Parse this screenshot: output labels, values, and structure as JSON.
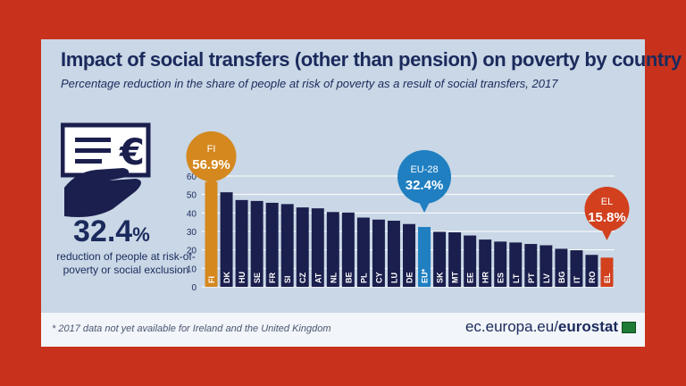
{
  "header": {
    "title": "Impact of social transfers (other than pension) on poverty by country",
    "subtitle": "Percentage reduction in the share of people at risk of poverty as a result of social transfers, 2017"
  },
  "highlight": {
    "value": "32.4",
    "unit": "%",
    "description": "reduction of people at risk-of-poverty or social exclusion"
  },
  "footer": {
    "footnote": "* 2017 data not yet available  for Ireland and the United Kingdom",
    "source_prefix": "ec.europa.eu/",
    "source_brand": "eurostat"
  },
  "callouts": [
    {
      "label": "FI",
      "value": "56.9%",
      "color": "#d4881e",
      "target": "FI"
    },
    {
      "label": "EU-28",
      "value": "32.4%",
      "color": "#1f7fc1",
      "target": "EU"
    },
    {
      "label": "EL",
      "value": "15.8%",
      "color": "#d2401e",
      "target": "EL"
    }
  ],
  "chart_data": {
    "type": "bar",
    "categories": [
      "FI",
      "DK",
      "HU",
      "SE",
      "FR",
      "SI",
      "CZ",
      "AT",
      "NL",
      "BE",
      "PL",
      "CY",
      "LU",
      "DE",
      "EU*",
      "SK",
      "MT",
      "EE",
      "HR",
      "ES",
      "LT",
      "PT",
      "LV",
      "BG",
      "IT",
      "RO",
      "EL"
    ],
    "values": [
      56.9,
      51.2,
      47.0,
      46.5,
      45.5,
      44.8,
      43.0,
      42.5,
      40.5,
      40.2,
      37.5,
      36.4,
      35.8,
      34.0,
      32.4,
      29.8,
      29.5,
      27.8,
      25.6,
      24.5,
      24.0,
      23.2,
      22.5,
      20.6,
      19.8,
      17.3,
      15.8
    ],
    "colors": {
      "default": "#1b1f4d",
      "FI": "#d4881e",
      "EU*": "#1f7fc1",
      "EL": "#d2401e"
    },
    "yticks": [
      0,
      10,
      20,
      30,
      40,
      50,
      60
    ],
    "ylim": [
      0,
      60
    ],
    "grid": true
  },
  "colors": {
    "background": "#c8321c",
    "card": "#c9d7e6",
    "navy": "#1b2a5c"
  },
  "icons": [
    "euro-cheque-icon",
    "hand-icon",
    "eu-flag-icon"
  ]
}
